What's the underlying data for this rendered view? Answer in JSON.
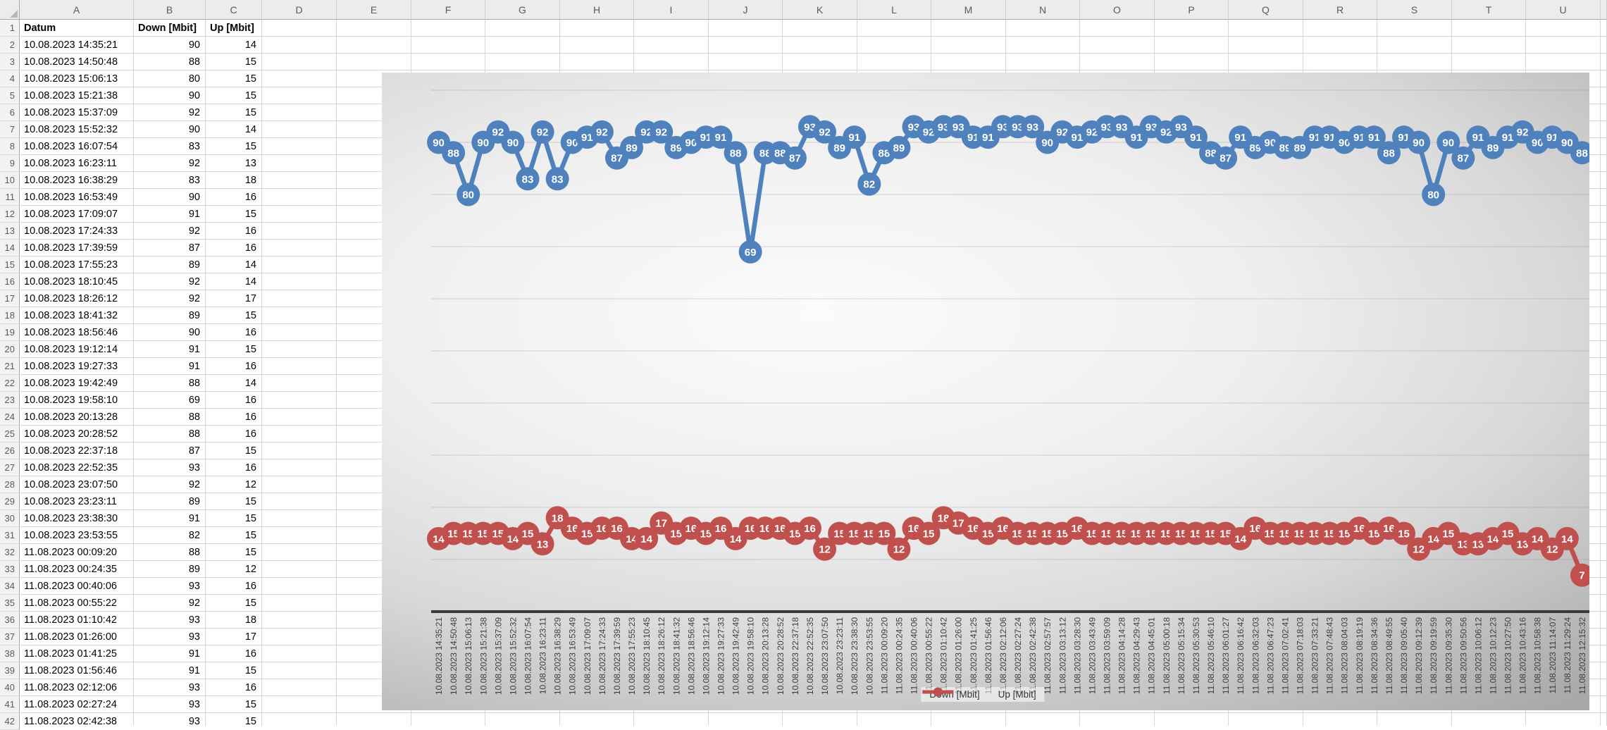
{
  "sheet": {
    "column_letters": [
      "A",
      "B",
      "C",
      "D",
      "E",
      "F",
      "G",
      "H",
      "I",
      "J",
      "K",
      "L",
      "M",
      "N",
      "O",
      "P",
      "Q",
      "R",
      "S",
      "T",
      "U"
    ],
    "row_count": 42,
    "header_row": [
      "Datum",
      "Down [Mbit]",
      "Up [Mbit]"
    ],
    "data_rows": [
      [
        "10.08.2023 14:35:21",
        90,
        14
      ],
      [
        "10.08.2023 14:50:48",
        88,
        15
      ],
      [
        "10.08.2023 15:06:13",
        80,
        15
      ],
      [
        "10.08.2023 15:21:38",
        90,
        15
      ],
      [
        "10.08.2023 15:37:09",
        92,
        15
      ],
      [
        "10.08.2023 15:52:32",
        90,
        14
      ],
      [
        "10.08.2023 16:07:54",
        83,
        15
      ],
      [
        "10.08.2023 16:23:11",
        92,
        13
      ],
      [
        "10.08.2023 16:38:29",
        83,
        18
      ],
      [
        "10.08.2023 16:53:49",
        90,
        16
      ],
      [
        "10.08.2023 17:09:07",
        91,
        15
      ],
      [
        "10.08.2023 17:24:33",
        92,
        16
      ],
      [
        "10.08.2023 17:39:59",
        87,
        16
      ],
      [
        "10.08.2023 17:55:23",
        89,
        14
      ],
      [
        "10.08.2023 18:10:45",
        92,
        14
      ],
      [
        "10.08.2023 18:26:12",
        92,
        17
      ],
      [
        "10.08.2023 18:41:32",
        89,
        15
      ],
      [
        "10.08.2023 18:56:46",
        90,
        16
      ],
      [
        "10.08.2023 19:12:14",
        91,
        15
      ],
      [
        "10.08.2023 19:27:33",
        91,
        16
      ],
      [
        "10.08.2023 19:42:49",
        88,
        14
      ],
      [
        "10.08.2023 19:58:10",
        69,
        16
      ],
      [
        "10.08.2023 20:13:28",
        88,
        16
      ],
      [
        "10.08.2023 20:28:52",
        88,
        16
      ],
      [
        "10.08.2023 22:37:18",
        87,
        15
      ],
      [
        "10.08.2023 22:52:35",
        93,
        16
      ],
      [
        "10.08.2023 23:07:50",
        92,
        12
      ],
      [
        "10.08.2023 23:23:11",
        89,
        15
      ],
      [
        "10.08.2023 23:38:30",
        91,
        15
      ],
      [
        "10.08.2023 23:53:55",
        82,
        15
      ],
      [
        "11.08.2023 00:09:20",
        88,
        15
      ],
      [
        "11.08.2023 00:24:35",
        89,
        12
      ],
      [
        "11.08.2023 00:40:06",
        93,
        16
      ],
      [
        "11.08.2023 00:55:22",
        92,
        15
      ],
      [
        "11.08.2023 01:10:42",
        93,
        18
      ],
      [
        "11.08.2023 01:26:00",
        93,
        17
      ],
      [
        "11.08.2023 01:41:25",
        91,
        16
      ],
      [
        "11.08.2023 01:56:46",
        91,
        15
      ],
      [
        "11.08.2023 02:12:06",
        93,
        16
      ],
      [
        "11.08.2023 02:27:24",
        93,
        15
      ],
      [
        "11.08.2023 02:42:38",
        93,
        15
      ]
    ]
  },
  "chart_data": {
    "type": "line",
    "title": "",
    "xlabel": "",
    "ylabel": "",
    "ylim": [
      0,
      100
    ],
    "grid": true,
    "legend_position": "bottom",
    "categories": [
      "10.08.2023 14:35:21",
      "10.08.2023 14:50:48",
      "10.08.2023 15:06:13",
      "10.08.2023 15:21:38",
      "10.08.2023 15:37:09",
      "10.08.2023 15:52:32",
      "10.08.2023 16:07:54",
      "10.08.2023 16:23:11",
      "10.08.2023 16:38:29",
      "10.08.2023 16:53:49",
      "10.08.2023 17:09:07",
      "10.08.2023 17:24:33",
      "10.08.2023 17:39:59",
      "10.08.2023 17:55:23",
      "10.08.2023 18:10:45",
      "10.08.2023 18:26:12",
      "10.08.2023 18:41:32",
      "10.08.2023 18:56:46",
      "10.08.2023 19:12:14",
      "10.08.2023 19:27:33",
      "10.08.2023 19:42:49",
      "10.08.2023 19:58:10",
      "10.08.2023 20:13:28",
      "10.08.2023 20:28:52",
      "10.08.2023 22:37:18",
      "10.08.2023 22:52:35",
      "10.08.2023 23:07:50",
      "10.08.2023 23:23:11",
      "10.08.2023 23:38:30",
      "10.08.2023 23:53:55",
      "11.08.2023 00:09:20",
      "11.08.2023 00:24:35",
      "11.08.2023 00:40:06",
      "11.08.2023 00:55:22",
      "11.08.2023 01:10:42",
      "11.08.2023 01:26:00",
      "11.08.2023 01:41:25",
      "11.08.2023 01:56:46",
      "11.08.2023 02:12:06",
      "11.08.2023 02:27:24",
      "11.08.2023 02:42:38",
      "11.08.2023 02:57:57",
      "11.08.2023 03:13:12",
      "11.08.2023 03:28:30",
      "11.08.2023 03:43:49",
      "11.08.2023 03:59:09",
      "11.08.2023 04:14:28",
      "11.08.2023 04:29:43",
      "11.08.2023 04:45:01",
      "11.08.2023 05:00:18",
      "11.08.2023 05:15:34",
      "11.08.2023 05:30:53",
      "11.08.2023 05:46:10",
      "11.08.2023 06:01:27",
      "11.08.2023 06:16:42",
      "11.08.2023 06:32:03",
      "11.08.2023 06:47:23",
      "11.08.2023 07:02:41",
      "11.08.2023 07:18:03",
      "11.08.2023 07:33:21",
      "11.08.2023 07:48:43",
      "11.08.2023 08:04:03",
      "11.08.2023 08:19:19",
      "11.08.2023 08:34:36",
      "11.08.2023 08:49:55",
      "11.08.2023 09:05:40",
      "11.08.2023 09:12:39",
      "11.08.2023 09:19:59",
      "11.08.2023 09:35:30",
      "11.08.2023 09:50:56",
      "11.08.2023 10:06:12",
      "11.08.2023 10:12:23",
      "11.08.2023 10:27:50",
      "11.08.2023 10:43:16",
      "11.08.2023 10:58:38",
      "11.08.2023 11:14:07",
      "11.08.2023 11:29:24",
      "11.08.2023 12:15:32"
    ],
    "series": [
      {
        "name": "Down [Mbit]",
        "color": "#4F81BD",
        "values": [
          90,
          88,
          80,
          90,
          92,
          90,
          83,
          92,
          83,
          90,
          91,
          92,
          87,
          89,
          92,
          92,
          89,
          90,
          91,
          91,
          88,
          69,
          88,
          88,
          87,
          93,
          92,
          89,
          91,
          82,
          88,
          89,
          93,
          92,
          93,
          93,
          91,
          91,
          93,
          93,
          93,
          90,
          92,
          91,
          92,
          93,
          93,
          91,
          93,
          92,
          93,
          91,
          88,
          87,
          91,
          89,
          90,
          89,
          89,
          91,
          91,
          90,
          91,
          91,
          88,
          91,
          90,
          80,
          90,
          87,
          91,
          89,
          91,
          92,
          90,
          91,
          90,
          88
        ]
      },
      {
        "name": "Up [Mbit]",
        "color": "#C0504D",
        "values": [
          14,
          15,
          15,
          15,
          15,
          14,
          15,
          13,
          18,
          16,
          15,
          16,
          16,
          14,
          14,
          17,
          15,
          16,
          15,
          16,
          14,
          16,
          16,
          16,
          15,
          16,
          12,
          15,
          15,
          15,
          15,
          12,
          16,
          15,
          18,
          17,
          16,
          15,
          16,
          15,
          15,
          15,
          15,
          16,
          15,
          15,
          15,
          15,
          15,
          15,
          15,
          15,
          15,
          15,
          14,
          16,
          15,
          15,
          15,
          15,
          15,
          15,
          16,
          15,
          16,
          15,
          12,
          14,
          15,
          13,
          13,
          14,
          15,
          13,
          14,
          12,
          14,
          7
        ]
      }
    ]
  }
}
